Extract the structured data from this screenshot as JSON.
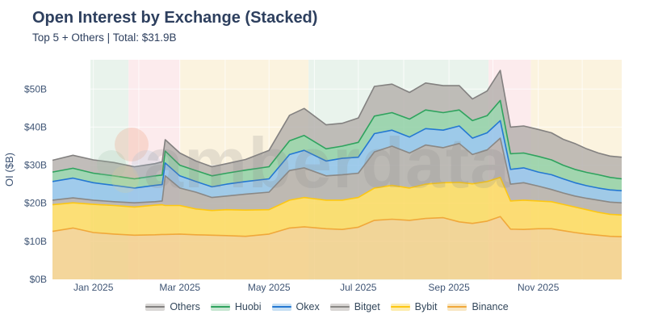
{
  "header": {
    "title": "Open Interest by Exchange (Stacked)",
    "subtitle": "Top 5 + Others | Total: $31.9B"
  },
  "chart_data": {
    "type": "area",
    "stacked": true,
    "title": "Open Interest by Exchange (Stacked)",
    "subtitle": "Top 5 + Others | Total: $31.9B",
    "ylabel": "OI ($B)",
    "ylim": [
      0,
      57.7
    ],
    "grid": true,
    "legend_position": "bottom-center",
    "watermark": "amberdata",
    "yticks": [
      {
        "v": 0,
        "label": "$0B"
      },
      {
        "v": 10,
        "label": "$10B"
      },
      {
        "v": 20,
        "label": "$20B"
      },
      {
        "v": 30,
        "label": "$30B"
      },
      {
        "v": 40,
        "label": "$40B"
      },
      {
        "v": 50,
        "label": "$50B"
      }
    ],
    "x_range": [
      "2024-12-04",
      "2025-12-28"
    ],
    "xticks": [
      {
        "date": "2025-01-01",
        "label": "Jan 2025"
      },
      {
        "date": "2025-03-01",
        "label": "Mar 2025"
      },
      {
        "date": "2025-05-01",
        "label": "May 2025"
      },
      {
        "date": "2025-07-01",
        "label": "Jul 2025"
      },
      {
        "date": "2025-09-01",
        "label": "Sep 2025"
      },
      {
        "date": "2025-11-01",
        "label": "Nov 2025"
      }
    ],
    "grid_months": [
      "2025-01-01",
      "2025-02-01",
      "2025-03-01",
      "2025-04-01",
      "2025-05-01",
      "2025-06-01",
      "2025-07-01",
      "2025-08-01",
      "2025-09-01",
      "2025-10-01",
      "2025-11-01",
      "2025-12-01"
    ],
    "background_regions": [
      {
        "from": "2024-12-30",
        "to": "2025-01-25",
        "color": "#e9f3ec"
      },
      {
        "from": "2025-01-25",
        "to": "2025-03-01",
        "color": "#fcebed"
      },
      {
        "from": "2025-03-01",
        "to": "2025-05-28",
        "color": "#fbf3df"
      },
      {
        "from": "2025-05-28",
        "to": "2025-09-28",
        "color": "#e9f3ec"
      },
      {
        "from": "2025-09-28",
        "to": "2025-10-27",
        "color": "#fcebed"
      },
      {
        "from": "2025-10-27",
        "to": "2025-12-28",
        "color": "#fbf3df"
      }
    ],
    "x": [
      "2024-12-04",
      "2024-12-18",
      "2025-01-01",
      "2025-01-15",
      "2025-01-29",
      "2025-02-12",
      "2025-02-17",
      "2025-02-19",
      "2025-03-01",
      "2025-03-12",
      "2025-03-23",
      "2025-04-02",
      "2025-04-15",
      "2025-05-01",
      "2025-05-15",
      "2025-05-25",
      "2025-06-09",
      "2025-06-20",
      "2025-07-01",
      "2025-07-12",
      "2025-07-24",
      "2025-08-05",
      "2025-08-16",
      "2025-08-28",
      "2025-09-08",
      "2025-09-17",
      "2025-09-27",
      "2025-10-06",
      "2025-10-13",
      "2025-10-22",
      "2025-11-01",
      "2025-11-10",
      "2025-11-18",
      "2025-11-26",
      "2025-12-04",
      "2025-12-12",
      "2025-12-20",
      "2025-12-28"
    ],
    "series": [
      {
        "name": "Binance",
        "line": "#f0a83a",
        "fill": "#f2cf8a",
        "values": [
          12.6,
          13.5,
          12.3,
          11.9,
          11.6,
          11.7,
          11.8,
          11.8,
          11.9,
          11.7,
          11.6,
          11.5,
          11.3,
          11.9,
          13.5,
          13.8,
          13.3,
          13.1,
          13.7,
          15.5,
          15.8,
          15.5,
          16.0,
          16.2,
          15.1,
          14.7,
          15.3,
          16.5,
          13.2,
          13.1,
          13.3,
          13.3,
          12.8,
          12.3,
          11.9,
          11.6,
          11.3,
          11.2
        ]
      },
      {
        "name": "Bybit",
        "line": "#fdc712",
        "fill": "#fcd95e",
        "values": [
          7.0,
          6.6,
          7.4,
          7.5,
          7.4,
          7.8,
          7.8,
          7.6,
          7.5,
          6.8,
          6.5,
          6.8,
          6.9,
          6.4,
          7.3,
          7.7,
          7.5,
          7.7,
          7.8,
          8.5,
          8.9,
          8.5,
          9.0,
          9.2,
          10.4,
          10.4,
          10.4,
          10.3,
          7.4,
          7.7,
          7.3,
          7.1,
          6.9,
          6.7,
          6.4,
          6.0,
          5.8,
          5.7
        ]
      },
      {
        "name": "Bitget",
        "line": "#8a8885",
        "fill": "#b3aeaa",
        "values": [
          1.2,
          1.3,
          1.1,
          1.0,
          1.1,
          0.9,
          1.0,
          7.8,
          4.6,
          4.4,
          3.4,
          3.6,
          4.2,
          4.6,
          7.8,
          7.8,
          6.4,
          6.7,
          6.4,
          9.5,
          10.3,
          9.2,
          10.3,
          9.2,
          10.2,
          7.7,
          8.3,
          10.3,
          4.4,
          4.6,
          3.9,
          3.2,
          3.0,
          2.9,
          3.0,
          3.2,
          3.2,
          3.2
        ]
      },
      {
        "name": "Okex",
        "line": "#2478d2",
        "fill": "#8fc2e9",
        "values": [
          4.9,
          5.2,
          4.6,
          4.3,
          3.9,
          4.3,
          4.3,
          3.4,
          3.2,
          2.8,
          2.8,
          3.1,
          3.3,
          3.5,
          4.2,
          4.6,
          3.9,
          4.3,
          4.2,
          4.8,
          4.2,
          4.2,
          4.3,
          4.6,
          4.6,
          4.3,
          4.5,
          4.6,
          3.9,
          3.9,
          3.7,
          3.9,
          3.7,
          3.5,
          3.3,
          3.2,
          3.2,
          3.2
        ]
      },
      {
        "name": "Huobi",
        "line": "#2fa35e",
        "fill": "#90cfa6",
        "values": [
          2.5,
          2.6,
          2.5,
          2.5,
          2.4,
          2.5,
          2.5,
          3.1,
          2.8,
          2.9,
          2.9,
          2.9,
          3.0,
          3.2,
          3.6,
          3.9,
          3.2,
          3.2,
          3.9,
          4.6,
          4.6,
          4.7,
          4.9,
          4.6,
          4.2,
          4.6,
          4.5,
          5.3,
          4.1,
          3.9,
          4.1,
          3.9,
          3.6,
          3.5,
          3.5,
          3.5,
          3.3,
          3.1
        ]
      },
      {
        "name": "Others",
        "line": "#838180",
        "fill": "#b6b2ae",
        "values": [
          3.1,
          3.4,
          3.5,
          3.5,
          3.2,
          3.2,
          3.5,
          3.0,
          3.2,
          2.5,
          2.4,
          2.5,
          2.8,
          4.3,
          6.7,
          7.1,
          6.3,
          6.0,
          6.4,
          7.8,
          7.5,
          7.0,
          7.1,
          7.1,
          6.4,
          5.7,
          6.5,
          7.9,
          7.0,
          7.1,
          7.1,
          7.1,
          6.8,
          6.8,
          6.2,
          5.7,
          5.6,
          5.7
        ]
      }
    ]
  }
}
